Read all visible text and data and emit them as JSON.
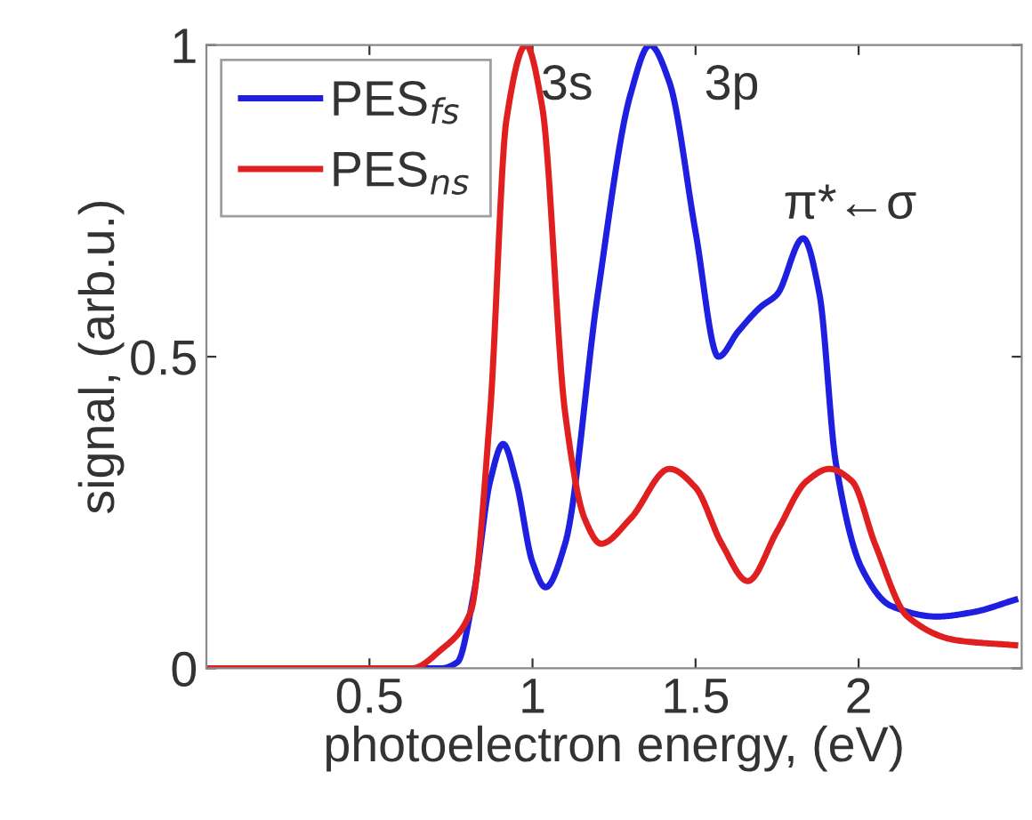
{
  "chart_data": {
    "type": "line",
    "xlabel": "photoelectron energy, (eV)",
    "ylabel": "signal, (arb.u.)",
    "xlim": [
      0,
      2.5
    ],
    "ylim": [
      0,
      1
    ],
    "xticks": [
      0.5,
      1,
      1.5,
      2
    ],
    "yticks": [
      0,
      0.5,
      1
    ],
    "grid": false,
    "legend": "top left",
    "marker": "none",
    "line_style": "solid",
    "series": [
      {
        "name": "PES$_{fs}$",
        "color": "#1f1fe0",
        "x": [
          0,
          0.72,
          0.77,
          0.82,
          0.87,
          0.91,
          0.95,
          1.0,
          1.04,
          1.1,
          1.2,
          1.3,
          1.36,
          1.42,
          1.5,
          1.57,
          1.63,
          1.7,
          1.75,
          1.83,
          1.88,
          1.93,
          2.01,
          2.1,
          2.24,
          2.35,
          2.48
        ],
        "values": [
          0,
          0,
          0.01,
          0.12,
          0.3,
          0.36,
          0.3,
          0.17,
          0.13,
          0.2,
          0.6,
          0.92,
          1,
          0.94,
          0.7,
          0.5,
          0.54,
          0.58,
          0.6,
          0.69,
          0.6,
          0.33,
          0.16,
          0.1,
          0.083,
          0.09,
          0.11
        ]
      },
      {
        "name": "PES$_{ns}$",
        "color": "#e02020",
        "x": [
          0,
          0.63,
          0.72,
          0.81,
          0.87,
          0.92,
          0.98,
          1.03,
          1.1,
          1.16,
          1.21,
          1.3,
          1.42,
          1.5,
          1.58,
          1.66,
          1.75,
          1.84,
          1.91,
          1.98,
          2.05,
          2.15,
          2.3,
          2.48
        ],
        "values": [
          0,
          0,
          0.03,
          0.09,
          0.41,
          0.88,
          1,
          0.9,
          0.41,
          0.24,
          0.2,
          0.24,
          0.32,
          0.29,
          0.2,
          0.14,
          0.22,
          0.3,
          0.32,
          0.3,
          0.2,
          0.083,
          0.045,
          0.037
        ]
      }
    ],
    "annotations": [
      {
        "text": "3s",
        "x": 0.98,
        "y": 1
      },
      {
        "text": "3p",
        "x": 1.36,
        "y": 1
      },
      {
        "text": "π*←σ",
        "x": 1.83,
        "y": 0.69
      }
    ]
  }
}
